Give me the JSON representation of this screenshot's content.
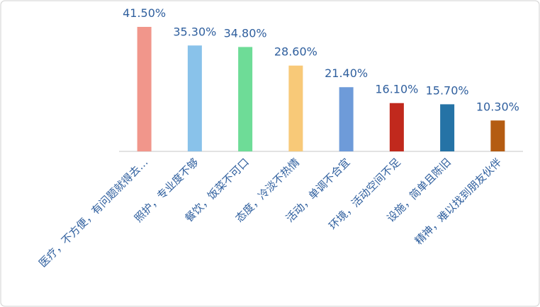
{
  "chart_data": {
    "type": "bar",
    "categories": [
      "医疗，不方便，有问题就得去…",
      "照护，专业度不够",
      "餐饮，饭菜不可口",
      "态度，冷淡不热情",
      "活动，单调不合宜",
      "环境，活动空间不足",
      "设施，简单且陈旧",
      "精神，难以找到朋友伙伴"
    ],
    "series": [
      {
        "colors": [
          "#f1968b",
          "#89c2ea",
          "#6edc97",
          "#f8c978",
          "#6e9bd9",
          "#c1291d",
          "#2573a6",
          "#b45c12"
        ],
        "values": [
          41.5,
          35.3,
          34.8,
          28.6,
          21.4,
          16.1,
          15.7,
          10.3
        ],
        "value_labels": [
          "41.50%",
          "35.30%",
          "34.80%",
          "28.60%",
          "21.40%",
          "16.10%",
          "15.70%",
          "10.30%"
        ]
      }
    ]
  }
}
